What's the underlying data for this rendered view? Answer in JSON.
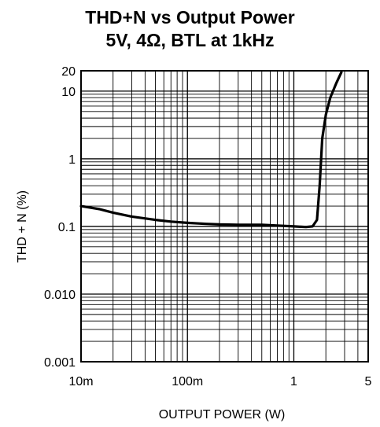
{
  "chart_data": {
    "type": "line",
    "title": "THD+N vs Output Power",
    "subtitle": "5V, 4Ω, BTL at 1kHz",
    "xlabel": "OUTPUT POWER (W)",
    "ylabel": "THD + N (%)",
    "x_scale": "log",
    "y_scale": "log",
    "xlim": [
      0.01,
      5
    ],
    "ylim": [
      0.001,
      20
    ],
    "grid": true,
    "x_ticks": [
      {
        "value": 0.01,
        "label": "10m"
      },
      {
        "value": 0.1,
        "label": "100m"
      },
      {
        "value": 1,
        "label": "1"
      },
      {
        "value": 5,
        "label": "5"
      }
    ],
    "y_ticks": [
      {
        "value": 20,
        "label": "20"
      },
      {
        "value": 10,
        "label": "10"
      },
      {
        "value": 1,
        "label": "1"
      },
      {
        "value": 0.1,
        "label": "0.1"
      },
      {
        "value": 0.01,
        "label": "0.010"
      },
      {
        "value": 0.001,
        "label": "0.001"
      }
    ],
    "series": [
      {
        "x": [
          0.01,
          0.015,
          0.02,
          0.03,
          0.05,
          0.07,
          0.1,
          0.15,
          0.2,
          0.3,
          0.5,
          0.7,
          1.0,
          1.3,
          1.5,
          1.65,
          1.75,
          1.85,
          2.0,
          2.2,
          2.5,
          2.8
        ],
        "y": [
          0.2,
          0.18,
          0.16,
          0.14,
          0.125,
          0.118,
          0.113,
          0.109,
          0.107,
          0.106,
          0.106,
          0.103,
          0.1,
          0.098,
          0.1,
          0.125,
          0.4,
          2.0,
          4.5,
          8.0,
          13.0,
          19.0
        ]
      }
    ]
  }
}
